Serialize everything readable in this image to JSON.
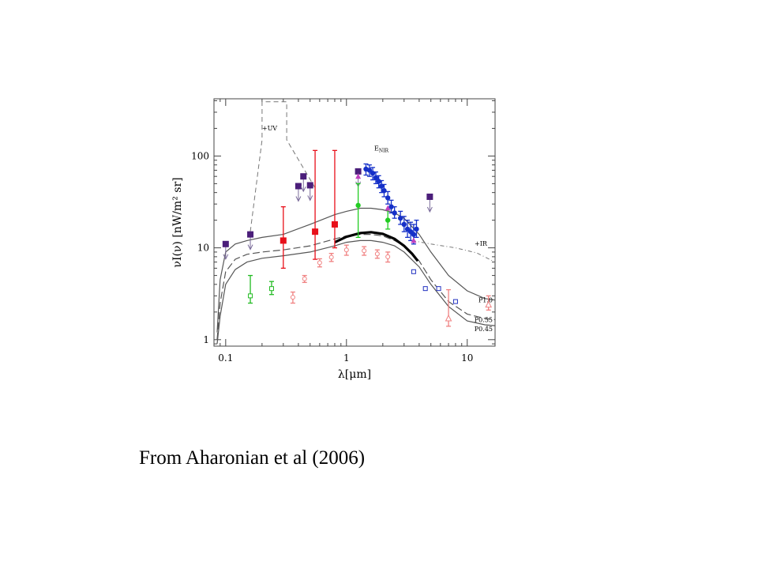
{
  "caption": "From Aharonian et al (2006)",
  "chart_data": {
    "type": "scatter",
    "xscale": "log",
    "yscale": "log",
    "xlim": [
      0.08,
      17
    ],
    "ylim": [
      0.85,
      420
    ],
    "xlabel": "λ[μm]",
    "ylabel": "νI(ν) [nW/m² sr]",
    "x_ticks": [
      {
        "v": 0.1,
        "label": "0.1"
      },
      {
        "v": 1,
        "label": "1"
      },
      {
        "v": 10,
        "label": "10"
      }
    ],
    "y_ticks": [
      {
        "v": 1,
        "label": "1"
      },
      {
        "v": 10,
        "label": "10"
      },
      {
        "v": 100,
        "label": "100"
      }
    ],
    "annotations": [
      {
        "text": "+UV",
        "x": 0.2,
        "y": 190
      },
      {
        "text": "E",
        "sub": "NIR",
        "x": 1.7,
        "y": 115
      },
      {
        "text": "+IR",
        "x": 11.5,
        "y": 10.5
      }
    ],
    "curves": [
      {
        "name": "P1.0",
        "style": "solid",
        "color": "#555555",
        "width": 1.2,
        "x": [
          0.085,
          0.09,
          0.1,
          0.12,
          0.15,
          0.2,
          0.3,
          0.5,
          0.8,
          1.0,
          1.3,
          1.6,
          2,
          2.5,
          3,
          4,
          5,
          7,
          10,
          14,
          17
        ],
        "y": [
          1.2,
          4.5,
          9,
          11,
          12,
          13,
          14,
          18,
          23,
          25,
          27,
          27,
          26,
          24,
          21,
          14,
          9,
          5,
          3.4,
          2.8,
          2.7
        ]
      },
      {
        "name": "P0.55",
        "style": "dashed",
        "color": "#555555",
        "width": 1.2,
        "x": [
          0.085,
          0.09,
          0.1,
          0.12,
          0.15,
          0.2,
          0.3,
          0.5,
          0.8,
          1.0,
          1.3,
          1.6,
          2,
          2.5,
          3,
          4,
          5,
          7,
          10,
          14,
          17
        ],
        "y": [
          1.0,
          2.5,
          5.5,
          7.5,
          8.5,
          9,
          9.5,
          10.5,
          12.5,
          13.5,
          14,
          14,
          13.5,
          12,
          10.5,
          7.2,
          4.5,
          2.6,
          1.9,
          1.7,
          1.65
        ]
      },
      {
        "name": "P0.45",
        "style": "solid",
        "color": "#555555",
        "width": 1.2,
        "x": [
          0.085,
          0.09,
          0.1,
          0.12,
          0.15,
          0.2,
          0.3,
          0.5,
          0.8,
          1.0,
          1.3,
          1.6,
          2,
          2.5,
          3,
          4,
          5,
          7,
          10,
          14,
          17
        ],
        "y": [
          0.9,
          1.8,
          4,
          5.8,
          7,
          7.7,
          8.2,
          9,
          10.5,
          11.5,
          12,
          12,
          11.5,
          10.5,
          9,
          6.2,
          4,
          2.3,
          1.6,
          1.45,
          1.42
        ]
      },
      {
        "name": "",
        "style": "bold",
        "color": "#000000",
        "width": 3.2,
        "x": [
          0.8,
          1.0,
          1.3,
          1.6,
          2.0,
          2.5,
          3.0,
          3.5,
          3.9
        ],
        "y": [
          11.5,
          13.2,
          14.5,
          14.8,
          14.2,
          12.5,
          10.5,
          8.6,
          7.2
        ]
      },
      {
        "name": "",
        "style": "dashed-upper",
        "color": "#777777",
        "width": 1,
        "x": [
          0.16,
          0.2,
          0.2,
          0.32,
          0.32,
          0.55
        ],
        "y": [
          15,
          150,
          390,
          390,
          150,
          45
        ]
      },
      {
        "name": "",
        "style": "dashdot",
        "color": "#777777",
        "width": 1,
        "x": [
          3.5,
          5,
          8,
          12,
          17
        ],
        "y": [
          12,
          11,
          10,
          8.8,
          7
        ]
      }
    ],
    "series": [
      {
        "name": "",
        "marker": "square-filled",
        "color": "#4b1e7a",
        "upper_limit": true,
        "x": [
          0.1,
          0.16,
          0.4,
          0.44,
          0.5,
          1.25,
          4.9
        ],
        "y": [
          11,
          14,
          47,
          60,
          48,
          68,
          36
        ]
      },
      {
        "name": "",
        "marker": "square-filled",
        "color": "#e8101a",
        "errorbars": true,
        "x": [
          0.3,
          0.55,
          0.8
        ],
        "y": [
          12,
          15,
          18
        ],
        "ylo": [
          6,
          7.5,
          10
        ],
        "yhi": [
          28,
          115,
          115
        ]
      },
      {
        "name": "",
        "marker": "square-open",
        "color": "#22bb22",
        "errorbars": true,
        "x": [
          0.16,
          0.24
        ],
        "y": [
          3,
          3.6
        ],
        "ylo": [
          2.5,
          3.1
        ],
        "yhi": [
          5,
          4.3
        ]
      },
      {
        "name": "",
        "marker": "circle-filled",
        "color": "#22cc22",
        "errorbars": true,
        "x": [
          1.25,
          2.2
        ],
        "y": [
          29,
          20
        ],
        "ylo": [
          13,
          16
        ],
        "yhi": [
          50,
          26
        ]
      },
      {
        "name": "",
        "marker": "circle-filled",
        "color": "#1530c8",
        "errorbars": true,
        "x": [
          1.45,
          1.55,
          1.65,
          1.75,
          1.85,
          1.95,
          2.05,
          2.2,
          2.35,
          2.5,
          2.8,
          3.0,
          3.2,
          3.4,
          3.6,
          3.8
        ],
        "y": [
          72,
          70,
          65,
          58,
          53,
          47,
          42,
          35,
          28,
          24,
          21,
          18,
          16,
          15,
          14,
          16
        ],
        "ylo": [
          62,
          60,
          55,
          50,
          45,
          40,
          36,
          30,
          24,
          21,
          18,
          15,
          13,
          12,
          11,
          13
        ],
        "yhi": [
          82,
          80,
          75,
          67,
          61,
          54,
          49,
          41,
          33,
          28,
          25,
          22,
          20,
          19,
          18,
          20
        ]
      },
      {
        "name": "",
        "marker": "triangle-filled",
        "color": "#c040c0",
        "x": [
          1.25,
          2.2,
          3.6
        ],
        "y": [
          60,
          27,
          12
        ]
      },
      {
        "name": "",
        "marker": "square-open",
        "color": "#2030c0",
        "x": [
          3.6,
          4.5,
          5.8,
          8.0
        ],
        "y": [
          5.5,
          3.6,
          3.6,
          2.6
        ]
      },
      {
        "name": "",
        "marker": "circle-open",
        "color": "#f08080",
        "errorbars": true,
        "x": [
          0.36,
          0.45,
          0.6,
          0.75,
          1.0,
          1.4,
          1.8,
          2.2
        ],
        "y": [
          2.9,
          4.6,
          6.9,
          7.9,
          9.5,
          9.3,
          8.6,
          8
        ],
        "ylo": [
          2.5,
          4.2,
          6.2,
          7.1,
          8.3,
          8.3,
          7.7,
          7
        ],
        "yhi": [
          3.3,
          5,
          7.6,
          8.7,
          10.7,
          10.3,
          9.5,
          9
        ]
      },
      {
        "name": "",
        "marker": "triangle-open",
        "color": "#f08080",
        "errorbars": true,
        "x": [
          7,
          15
        ],
        "y": [
          1.7,
          2.4
        ],
        "ylo": [
          1.4,
          2.1
        ],
        "yhi": [
          3.5,
          3
        ]
      }
    ],
    "curve_labels": [
      {
        "text": "P1.0",
        "y": 2.7
      },
      {
        "text": "P0.55",
        "y": 1.65
      },
      {
        "text": "P0.45",
        "y": 1.32
      }
    ]
  }
}
